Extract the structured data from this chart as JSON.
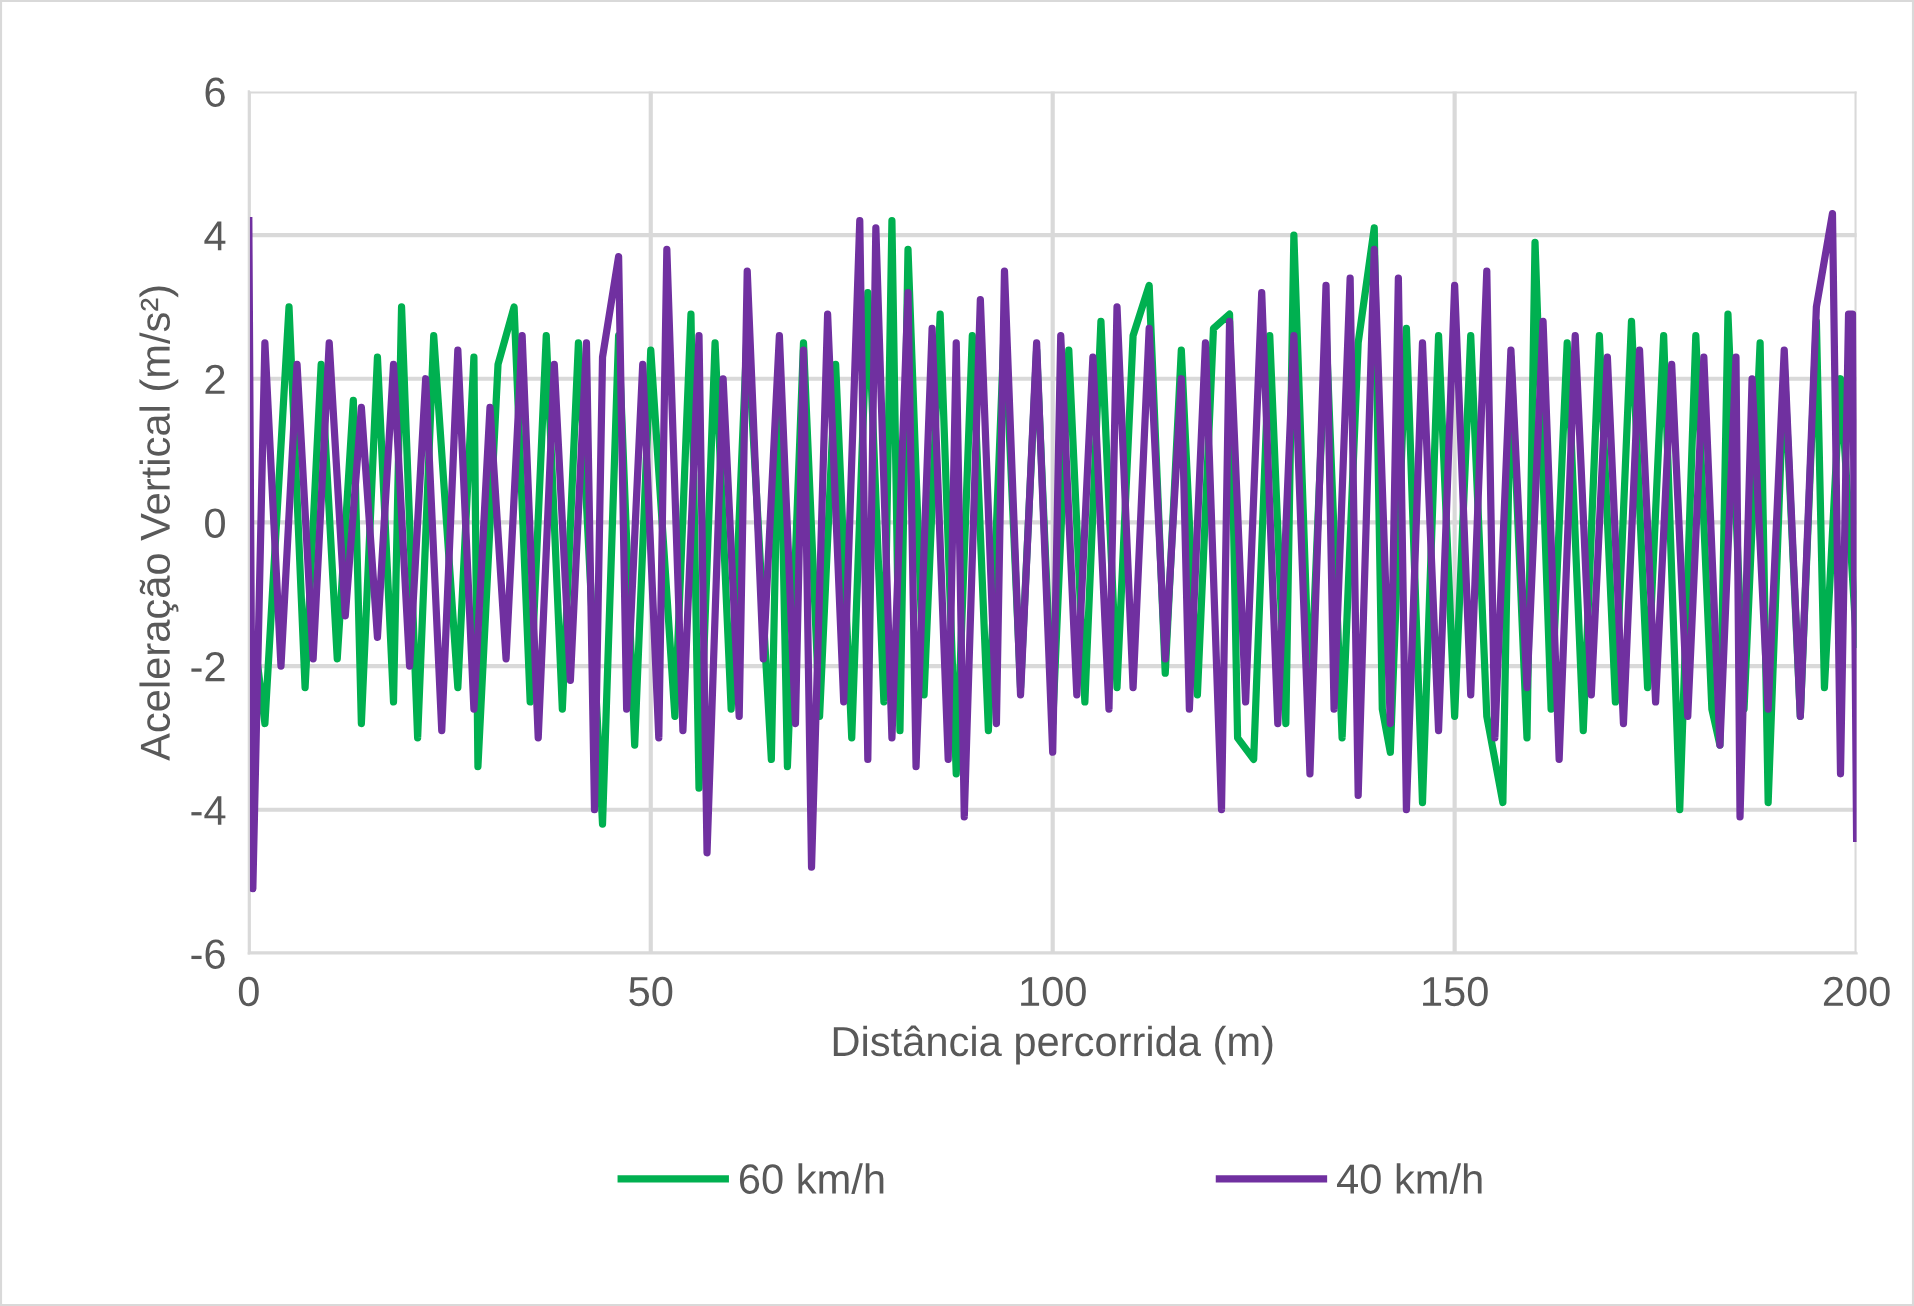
{
  "chart_data": {
    "type": "line",
    "xlabel": "Distância percorrida (m)",
    "ylabel": "Aceleração Vertical (m/s²)",
    "xlim": [
      0,
      200
    ],
    "xticks": [
      0,
      50,
      100,
      150,
      200
    ],
    "ylim": [
      -6,
      6
    ],
    "yticks": [
      -6,
      -4,
      -2,
      0,
      2,
      4,
      6
    ],
    "grid": true,
    "legend": "bottom",
    "marker": "none",
    "line_style": "solid",
    "series": [
      {
        "name": "60 km/h",
        "color": "#00b050",
        "x": [
          1,
          2,
          5,
          7,
          9,
          11,
          13,
          14,
          16,
          18,
          19,
          21,
          23,
          26,
          28,
          28.5,
          31,
          33,
          35,
          37,
          39,
          41,
          44,
          46,
          48,
          50,
          53,
          55,
          56,
          58,
          60,
          62,
          65,
          66,
          67,
          69,
          71,
          73,
          75,
          77,
          79,
          80,
          81,
          82,
          84,
          86,
          88,
          90,
          92,
          94,
          96,
          98,
          100,
          102,
          104,
          106,
          108,
          110,
          112,
          114,
          116,
          118,
          120,
          122,
          123,
          125,
          127,
          129,
          130,
          132,
          134,
          136,
          138,
          140,
          141,
          142,
          144,
          146,
          148,
          150,
          152,
          154,
          156,
          157,
          159,
          160,
          162,
          164,
          166,
          168,
          170,
          172,
          174,
          176,
          178,
          180,
          182,
          183,
          184,
          186,
          188,
          189,
          191,
          193,
          195,
          196,
          198,
          200
        ],
        "values": [
          -1.9,
          -2.8,
          3.0,
          -2.3,
          2.2,
          -1.9,
          1.7,
          -2.8,
          2.3,
          -2.5,
          3.0,
          -3.0,
          2.6,
          -2.3,
          2.3,
          -3.4,
          2.2,
          3.0,
          -2.5,
          2.6,
          -2.6,
          2.5,
          -4.2,
          2.6,
          -3.1,
          2.4,
          -2.7,
          2.9,
          -3.7,
          2.5,
          -2.6,
          2.7,
          -3.3,
          2.3,
          -3.4,
          2.5,
          -2.7,
          2.2,
          -3.0,
          3.2,
          -2.5,
          4.2,
          -2.9,
          3.8,
          -2.4,
          2.9,
          -3.5,
          2.6,
          -2.9,
          2.8,
          -2.3,
          2.4,
          -2.8,
          2.4,
          -2.5,
          2.8,
          -2.3,
          2.6,
          3.3,
          -2.1,
          2.4,
          -2.4,
          2.7,
          2.9,
          -3.0,
          -3.3,
          2.6,
          -2.8,
          4.0,
          -2.6,
          2.7,
          -3.0,
          2.5,
          4.1,
          -2.6,
          -3.2,
          2.7,
          -3.9,
          2.6,
          -2.7,
          2.6,
          -2.7,
          -3.9,
          2.3,
          -3.0,
          3.9,
          -2.6,
          2.5,
          -2.9,
          2.6,
          -2.5,
          2.8,
          -2.3,
          2.6,
          -4.0,
          2.6,
          -2.6,
          -3.1,
          2.9,
          -2.6,
          2.5,
          -3.9,
          2.2,
          -2.7,
          2.8,
          -2.3,
          2.0,
          -1.7
        ]
      },
      {
        "name": "40 km/h",
        "color": "#7030a0",
        "x": [
          0,
          0.5,
          2,
          4,
          6,
          8,
          10,
          12,
          14,
          16,
          18,
          20,
          22,
          24,
          26,
          28,
          30,
          32,
          34,
          36,
          38,
          40,
          42,
          43,
          44,
          46,
          47,
          49,
          51,
          52,
          54,
          56,
          57,
          59,
          61,
          62,
          64,
          66,
          68,
          69,
          70,
          72,
          74,
          76,
          77,
          78,
          80,
          82,
          83,
          85,
          87,
          88,
          89,
          91,
          93,
          94,
          96,
          98,
          100,
          101,
          103,
          105,
          107,
          108,
          110,
          112,
          114,
          116,
          117,
          119,
          121,
          122,
          124,
          126,
          128,
          130,
          132,
          134,
          135,
          137,
          138,
          140,
          142,
          143,
          144,
          146,
          148,
          150,
          152,
          154,
          155,
          157,
          159,
          161,
          163,
          165,
          167,
          169,
          171,
          173,
          175,
          177,
          179,
          181,
          183,
          185,
          185.5,
          187,
          189,
          191,
          193,
          195,
          197,
          198,
          199,
          199.5,
          200
        ],
        "values": [
          4.2,
          -5.1,
          2.5,
          -2.0,
          2.2,
          -1.9,
          2.5,
          -1.3,
          1.6,
          -1.6,
          2.2,
          -2.0,
          2.0,
          -2.9,
          2.4,
          -2.6,
          1.6,
          -1.9,
          2.6,
          -3.0,
          2.2,
          -2.2,
          2.5,
          -4.0,
          2.3,
          3.7,
          -2.6,
          2.2,
          -3.0,
          3.8,
          -2.9,
          2.6,
          -4.6,
          2.0,
          -2.7,
          3.5,
          -1.9,
          2.6,
          -2.8,
          2.4,
          -4.8,
          2.9,
          -2.5,
          4.2,
          -3.3,
          4.1,
          -3.0,
          3.2,
          -3.4,
          2.7,
          -3.3,
          2.5,
          -4.1,
          3.1,
          -2.8,
          3.5,
          -2.4,
          2.5,
          -3.2,
          2.6,
          -2.4,
          2.3,
          -2.6,
          3.0,
          -2.3,
          2.7,
          -1.9,
          2.0,
          -2.6,
          2.5,
          -4.0,
          2.8,
          -2.5,
          3.2,
          -2.8,
          2.6,
          -3.5,
          3.3,
          -2.6,
          3.4,
          -3.8,
          3.8,
          -2.8,
          3.4,
          -4.0,
          2.5,
          -2.9,
          3.3,
          -2.4,
          3.5,
          -3.0,
          2.4,
          -2.3,
          2.8,
          -3.3,
          2.6,
          -2.4,
          2.3,
          -2.8,
          2.4,
          -2.5,
          2.2,
          -2.7,
          2.3,
          -3.1,
          2.3,
          -4.1,
          2.0,
          -2.6,
          2.4,
          -2.7,
          3.0,
          4.3,
          -3.5,
          2.9,
          2.9,
          -4.4
        ]
      }
    ]
  }
}
